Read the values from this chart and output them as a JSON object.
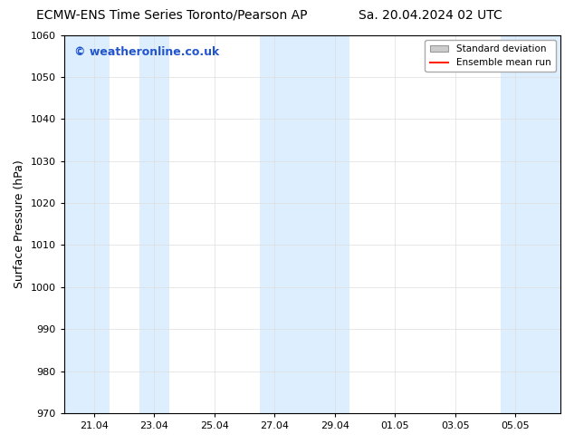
{
  "title_left": "ECMW-ENS Time Series Toronto/Pearson AP",
  "title_right": "Sa. 20.04.2024 02 UTC",
  "ylabel": "Surface Pressure (hPa)",
  "ylim": [
    970,
    1060
  ],
  "yticks": [
    970,
    980,
    990,
    1000,
    1010,
    1020,
    1030,
    1040,
    1050,
    1060
  ],
  "xtick_labels": [
    "21.04",
    "23.04",
    "25.04",
    "27.04",
    "29.04",
    "01.05",
    "03.05",
    "05.05"
  ],
  "xtick_positions": [
    1,
    3,
    5,
    7,
    9,
    11,
    13,
    15
  ],
  "xlim": [
    0,
    16.5
  ],
  "shaded_bands": [
    {
      "x_start": 0.0,
      "x_end": 1.5
    },
    {
      "x_start": 2.5,
      "x_end": 3.5
    },
    {
      "x_start": 6.5,
      "x_end": 9.5
    },
    {
      "x_start": 14.5,
      "x_end": 16.5
    }
  ],
  "band_color": "#ddeeff",
  "watermark_text": "© weatheronline.co.uk",
  "watermark_color": "#2255cc",
  "legend_std_dev_label": "Standard deviation",
  "legend_mean_label": "Ensemble mean run",
  "legend_std_color": "#cccccc",
  "legend_mean_color": "#ff2200",
  "bg_color": "#ffffff",
  "plot_bg_color": "#ffffff",
  "axis_color": "#000000",
  "tick_color": "#000000",
  "grid_color": "#dddddd",
  "title_fontsize": 10,
  "label_fontsize": 9,
  "tick_fontsize": 8,
  "watermark_fontsize": 9
}
